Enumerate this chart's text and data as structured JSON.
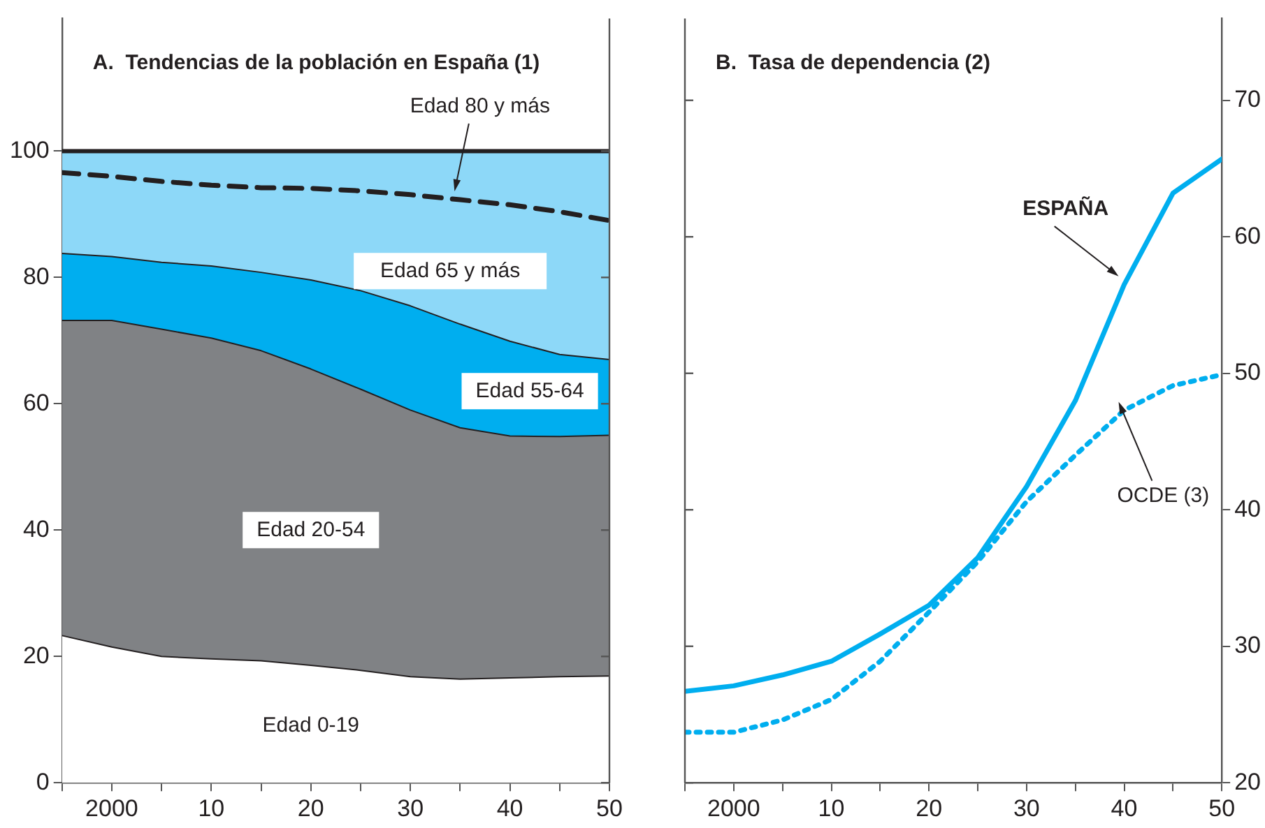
{
  "chart_data": [
    {
      "type": "area",
      "title": "A.  Tendencias de la población en España (1)",
      "stacked": true,
      "legend": false,
      "grid": false,
      "marker": "none",
      "x": [
        1995,
        2000,
        2005,
        2010,
        2015,
        2020,
        2025,
        2030,
        2035,
        2040,
        2045,
        2050
      ],
      "xlim": [
        1995,
        2050
      ],
      "xticks": [
        {
          "value": 1995,
          "label": null
        },
        2000,
        {
          "value": 2005,
          "label": null
        },
        {
          "value": 2010,
          "label": "10"
        },
        {
          "value": 2015,
          "label": null
        },
        {
          "value": 2020,
          "label": "20"
        },
        {
          "value": 2025,
          "label": null
        },
        {
          "value": 2030,
          "label": "30"
        },
        {
          "value": 2035,
          "label": null
        },
        {
          "value": 2040,
          "label": "40"
        },
        {
          "value": 2045,
          "label": null
        },
        {
          "value": 2050,
          "label": "50"
        }
      ],
      "ylim": [
        0,
        121
      ],
      "yticks": [
        0,
        20,
        40,
        60,
        80,
        100
      ],
      "series": [
        {
          "name": "Edad 0-19",
          "color": "#ffffff",
          "values": [
            23.3,
            21.5,
            20,
            19.6,
            19.3,
            18.6,
            17.8,
            16.8,
            16.4,
            16.6,
            16.8,
            16.9
          ]
        },
        {
          "name": "Edad 20-54",
          "color": "#808285",
          "values": [
            49.9,
            51.7,
            51.8,
            50.8,
            49.1,
            46.9,
            44.5,
            42.2,
            39.8,
            38.3,
            38,
            38.1
          ]
        },
        {
          "name": "Edad 55-64",
          "color": "#00aeef",
          "values": [
            10.6,
            10.1,
            10.6,
            11.4,
            12.4,
            14.1,
            15.6,
            16.5,
            16.4,
            15,
            13,
            12
          ]
        },
        {
          "name": "Edad 65 y más",
          "color": "#8dd8f8",
          "values": [
            16.2,
            16.7,
            17.6,
            18.2,
            19.2,
            20.4,
            22.1,
            24.5,
            27.4,
            30.1,
            32.2,
            33
          ]
        },
        {
          "name": "Edad 80 y más",
          "type": "line",
          "line_style": "dashed",
          "color": "#231f20",
          "values": [
            96.6,
            96,
            95.2,
            94.6,
            94.2,
            94.1,
            93.7,
            93.1,
            92.3,
            91.5,
            90.4,
            89
          ]
        }
      ]
    },
    {
      "type": "line",
      "title": "B.  Tasa de dependencia (2)",
      "legend": false,
      "grid": false,
      "marker": "none",
      "x": [
        1995,
        2000,
        2005,
        2010,
        2015,
        2020,
        2025,
        2030,
        2035,
        2040,
        2045,
        2050
      ],
      "xlim": [
        1995,
        2050
      ],
      "xticks": [
        {
          "value": 1995,
          "label": null
        },
        2000,
        {
          "value": 2005,
          "label": null
        },
        {
          "value": 2010,
          "label": "10"
        },
        {
          "value": 2015,
          "label": null
        },
        {
          "value": 2020,
          "label": "20"
        },
        {
          "value": 2025,
          "label": null
        },
        {
          "value": 2030,
          "label": "30"
        },
        {
          "value": 2035,
          "label": null
        },
        {
          "value": 2040,
          "label": "40"
        },
        {
          "value": 2045,
          "label": null
        },
        {
          "value": 2050,
          "label": "50"
        }
      ],
      "ylim": [
        20,
        76
      ],
      "yticks": [
        20,
        30,
        40,
        50,
        60,
        70
      ],
      "series": [
        {
          "name": "ESPAÑA",
          "color": "#00aeef",
          "line_style": "solid",
          "values": [
            26.7,
            27.1,
            27.9,
            28.9,
            30.9,
            33,
            36.5,
            41.7,
            48,
            56.5,
            63.2,
            65.7
          ]
        },
        {
          "name": "OCDE (3)",
          "color": "#00aeef",
          "line_style": "dotted",
          "values": [
            23.7,
            23.7,
            24.6,
            26.1,
            28.9,
            32.5,
            36.2,
            40.6,
            44,
            47.3,
            49.1,
            49.9
          ]
        }
      ]
    }
  ]
}
